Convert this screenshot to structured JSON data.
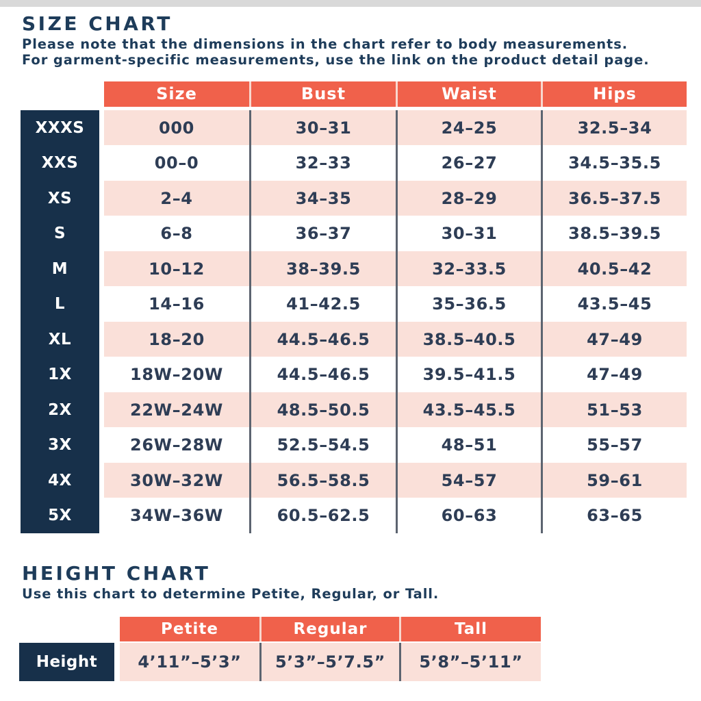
{
  "colors": {
    "coral_header": "#F0614B",
    "pink_row": "#FAE0D9",
    "navy_label": "#17304A",
    "text_navy": "#2E3D55",
    "divider": "#5C6470"
  },
  "size_chart": {
    "title": "SIZE CHART",
    "note_line1": "Please note that the dimensions in the chart refer to body measurements.",
    "note_line2": "For garment-specific measurements, use the link on the product detail page.",
    "header": [
      "Size",
      "Bust",
      "Waist",
      "Hips"
    ],
    "rows": [
      {
        "label": "XXXS",
        "values": [
          "000",
          "30–31",
          "24–25",
          "32.5–34"
        ]
      },
      {
        "label": "XXS",
        "values": [
          "00–0",
          "32–33",
          "26–27",
          "34.5–35.5"
        ]
      },
      {
        "label": "XS",
        "values": [
          "2–4",
          "34–35",
          "28–29",
          "36.5–37.5"
        ]
      },
      {
        "label": "S",
        "values": [
          "6–8",
          "36–37",
          "30–31",
          "38.5–39.5"
        ]
      },
      {
        "label": "M",
        "values": [
          "10–12",
          "38–39.5",
          "32–33.5",
          "40.5–42"
        ]
      },
      {
        "label": "L",
        "values": [
          "14–16",
          "41–42.5",
          "35–36.5",
          "43.5–45"
        ]
      },
      {
        "label": "XL",
        "values": [
          "18–20",
          "44.5–46.5",
          "38.5–40.5",
          "47–49"
        ]
      },
      {
        "label": "1X",
        "values": [
          "18W–20W",
          "44.5–46.5",
          "39.5–41.5",
          "47–49"
        ]
      },
      {
        "label": "2X",
        "values": [
          "22W–24W",
          "48.5–50.5",
          "43.5–45.5",
          "51–53"
        ]
      },
      {
        "label": "3X",
        "values": [
          "26W–28W",
          "52.5–54.5",
          "48–51",
          "55–57"
        ]
      },
      {
        "label": "4X",
        "values": [
          "30W–32W",
          "56.5–58.5",
          "54–57",
          "59–61"
        ]
      },
      {
        "label": "5X",
        "values": [
          "34W–36W",
          "60.5–62.5",
          "60–63",
          "63–65"
        ]
      }
    ]
  },
  "height_chart": {
    "title": "HEIGHT CHART",
    "note": "Use this chart to determine Petite, Regular, or Tall.",
    "header": [
      "Petite",
      "Regular",
      "Tall"
    ],
    "row_label": "Height",
    "values": [
      "4’11”–5’3”",
      "5’3”–5’7.5”",
      "5’8”–5’11”"
    ]
  },
  "chart_data": [
    {
      "type": "table",
      "title": "SIZE CHART",
      "columns": [
        "Size",
        "Bust",
        "Waist",
        "Hips"
      ],
      "row_labels": [
        "XXXS",
        "XXS",
        "XS",
        "S",
        "M",
        "L",
        "XL",
        "1X",
        "2X",
        "3X",
        "4X",
        "5X"
      ],
      "rows": [
        [
          "000",
          "30–31",
          "24–25",
          "32.5–34"
        ],
        [
          "00–0",
          "32–33",
          "26–27",
          "34.5–35.5"
        ],
        [
          "2–4",
          "34–35",
          "28–29",
          "36.5–37.5"
        ],
        [
          "6–8",
          "36–37",
          "30–31",
          "38.5–39.5"
        ],
        [
          "10–12",
          "38–39.5",
          "32–33.5",
          "40.5–42"
        ],
        [
          "14–16",
          "41–42.5",
          "35–36.5",
          "43.5–45"
        ],
        [
          "18–20",
          "44.5–46.5",
          "38.5–40.5",
          "47–49"
        ],
        [
          "18W–20W",
          "44.5–46.5",
          "39.5–41.5",
          "47–49"
        ],
        [
          "22W–24W",
          "48.5–50.5",
          "43.5–45.5",
          "51–53"
        ],
        [
          "26W–28W",
          "52.5–54.5",
          "48–51",
          "55–57"
        ],
        [
          "30W–32W",
          "56.5–58.5",
          "54–57",
          "59–61"
        ],
        [
          "34W–36W",
          "60.5–62.5",
          "60–63",
          "63–65"
        ]
      ]
    },
    {
      "type": "table",
      "title": "HEIGHT CHART",
      "columns": [
        "Petite",
        "Regular",
        "Tall"
      ],
      "row_labels": [
        "Height"
      ],
      "rows": [
        [
          "4’11”–5’3”",
          "5’3”–5’7.5”",
          "5’8”–5’11”"
        ]
      ]
    }
  ]
}
